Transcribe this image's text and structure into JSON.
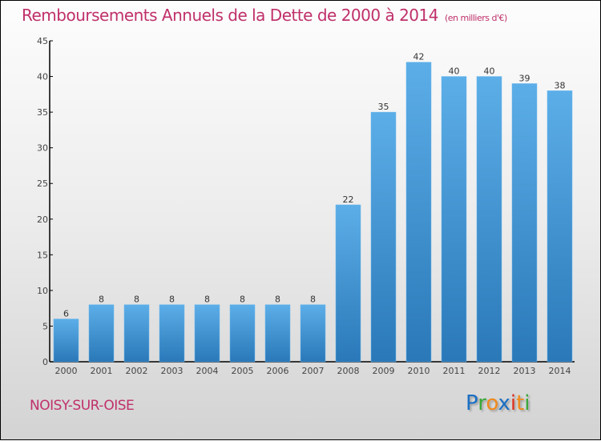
{
  "header": {
    "title": "Remboursements Annuels de la Dette de 2000 à 2014",
    "unit": "(en milliers d'€)"
  },
  "footer": {
    "city": "NOISY-SUR-OISE",
    "logo_letters": [
      {
        "ch": "P",
        "color": "#1a6fc4"
      },
      {
        "ch": "r",
        "color": "#3aa83a"
      },
      {
        "ch": "o",
        "color": "#f08a1c"
      },
      {
        "ch": "x",
        "color": "#1a6fc4"
      },
      {
        "ch": "i",
        "color": "#e03020"
      },
      {
        "ch": "t",
        "color": "#f08a1c"
      },
      {
        "ch": "i",
        "color": "#3aa83a"
      }
    ]
  },
  "colors": {
    "title": "#c0306a",
    "bar_top": "#5caee8",
    "bar_bottom": "#2a78b8"
  },
  "chart_data": {
    "type": "bar",
    "title": "Remboursements Annuels de la Dette de 2000 à 2014 (en milliers d'€)",
    "xlabel": "",
    "ylabel": "",
    "categories": [
      "2000",
      "2001",
      "2002",
      "2003",
      "2004",
      "2005",
      "2006",
      "2007",
      "2008",
      "2009",
      "2010",
      "2011",
      "2012",
      "2013",
      "2014"
    ],
    "values": [
      6,
      8,
      8,
      8,
      8,
      8,
      8,
      8,
      22,
      35,
      42,
      40,
      40,
      39,
      38
    ],
    "ylim": [
      0,
      45
    ],
    "yticks": [
      0,
      5,
      10,
      15,
      20,
      25,
      30,
      35,
      40,
      45
    ],
    "grid": false,
    "legend": "none"
  }
}
